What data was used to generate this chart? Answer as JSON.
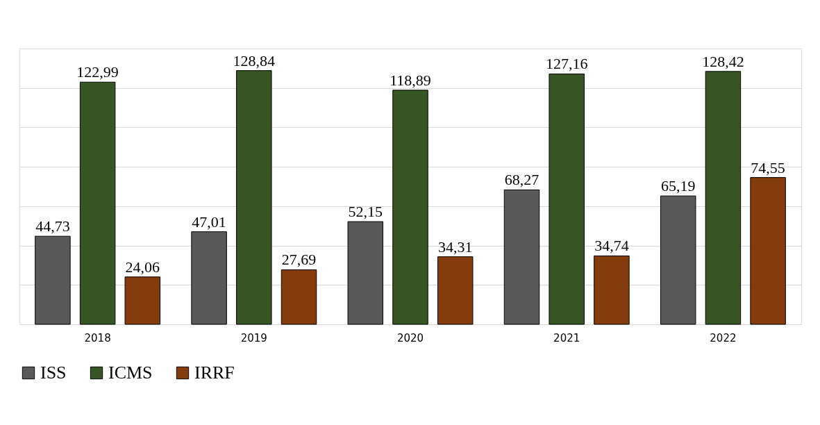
{
  "chart_data": {
    "type": "bar",
    "categories": [
      "2018",
      "2019",
      "2020",
      "2021",
      "2022"
    ],
    "series": [
      {
        "name": "ISS",
        "color": "#595959",
        "values": [
          44.73,
          47.01,
          52.15,
          68.27,
          65.19
        ],
        "value_labels": [
          "44,73",
          "47,01",
          "52,15",
          "68,27",
          "65,19"
        ]
      },
      {
        "name": "ICMS",
        "color": "#375623",
        "values": [
          122.99,
          128.84,
          118.89,
          127.16,
          128.42
        ],
        "value_labels": [
          "122,99",
          "128,84",
          "118,89",
          "127,16",
          "128,42"
        ]
      },
      {
        "name": "IRRF",
        "color": "#843c0c",
        "values": [
          24.06,
          27.69,
          34.31,
          34.74,
          74.55
        ],
        "value_labels": [
          "24,06",
          "27,69",
          "34,31",
          "34,74",
          "74,55"
        ]
      }
    ],
    "ylim": [
      0,
      140
    ],
    "yticks": [
      {
        "value": 0,
        "label": null
      },
      {
        "value": 20,
        "label": null
      },
      {
        "value": 40,
        "label": null
      },
      {
        "value": 60,
        "label": null
      },
      {
        "value": 80,
        "label": null
      },
      {
        "value": 100,
        "label": null
      },
      {
        "value": 120,
        "label": null
      },
      {
        "value": 140,
        "label": null
      }
    ],
    "tick_labels": "x",
    "grid": "y",
    "legend": "bottom"
  }
}
